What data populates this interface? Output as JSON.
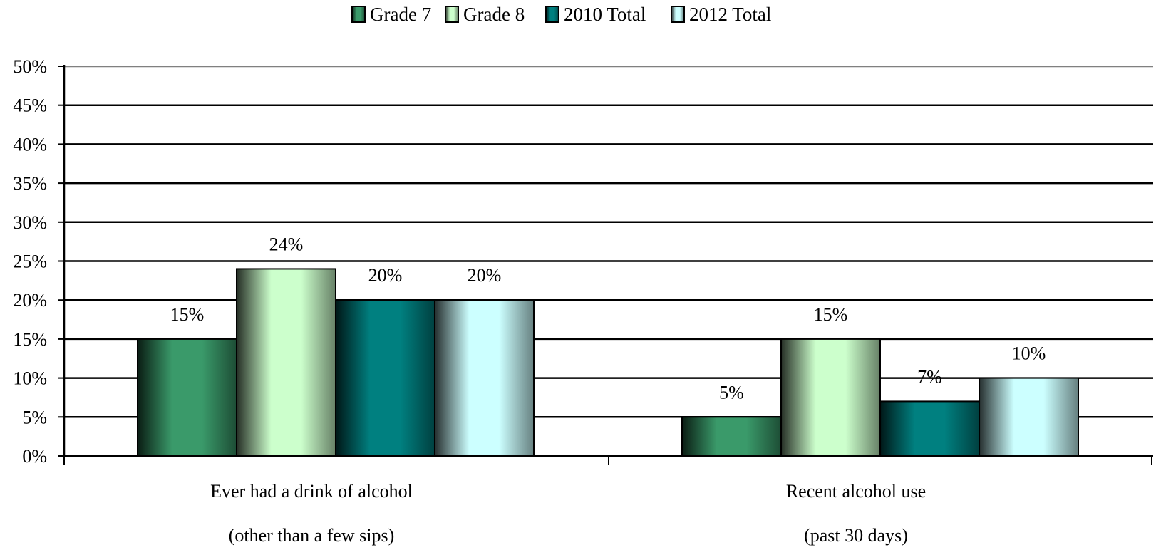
{
  "chart_data": {
    "type": "bar",
    "title": "",
    "xlabel": "",
    "ylabel": "",
    "categories": [
      [
        "Ever had a drink of alcohol",
        "(other than a few sips)"
      ],
      [
        "Recent alcohol use",
        "(past 30 days)"
      ]
    ],
    "series": [
      {
        "name": "Grade 7",
        "values": [
          15,
          5
        ],
        "labels": [
          "15%",
          "5%"
        ],
        "color": "#3a9a6a"
      },
      {
        "name": "Grade 8",
        "values": [
          24,
          15
        ],
        "labels": [
          "24%",
          "15%"
        ],
        "color": "#ccffcc"
      },
      {
        "name": "2010 Total",
        "values": [
          20,
          7
        ],
        "labels": [
          "20%",
          "7%"
        ],
        "color": "#008080"
      },
      {
        "name": "2012 Total",
        "values": [
          20,
          10
        ],
        "labels": [
          "20%",
          "10%"
        ],
        "color": "#ccffff"
      }
    ],
    "ylim": [
      0,
      50
    ],
    "yticks": [
      0,
      5,
      10,
      15,
      20,
      25,
      30,
      35,
      40,
      45,
      50
    ],
    "ytick_labels": [
      "0%",
      "5%",
      "10%",
      "15%",
      "20%",
      "25%",
      "30%",
      "35%",
      "40%",
      "45%",
      "50%"
    ],
    "grid": true,
    "legend_position": "top-center"
  }
}
